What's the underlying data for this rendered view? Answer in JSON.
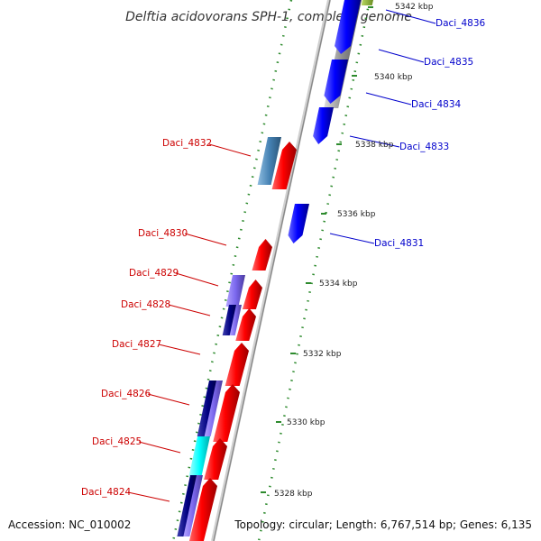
{
  "title": "Delftia acidovorans SPH-1, complete genome",
  "footer": {
    "accession": "Accession: NC_010002",
    "summary": "Topology: circular; Length: 6,767,514 bp; Genes: 6,135"
  },
  "colors": {
    "forward_label": "#cc0000",
    "reverse_label": "#0000cc",
    "forward_gene": "#ff0000",
    "reverse_gene": "#0000ff",
    "backbone": "#999999",
    "tick_dots": "#2e8b2e"
  },
  "scale_ticks": [
    {
      "label": "5342 kbp",
      "kbp": 5342
    },
    {
      "label": "5340 kbp",
      "kbp": 5340
    },
    {
      "label": "5338 kbp",
      "kbp": 5338
    },
    {
      "label": "5336 kbp",
      "kbp": 5336
    },
    {
      "label": "5334 kbp",
      "kbp": 5334
    },
    {
      "label": "5332 kbp",
      "kbp": 5332
    },
    {
      "label": "5330 kbp",
      "kbp": 5330
    },
    {
      "label": "5328 kbp",
      "kbp": 5328
    }
  ],
  "genes_forward": [
    {
      "label": "Daci_4832"
    },
    {
      "label": "Daci_4830"
    },
    {
      "label": "Daci_4829"
    },
    {
      "label": "Daci_4828"
    },
    {
      "label": "Daci_4827"
    },
    {
      "label": "Daci_4826"
    },
    {
      "label": "Daci_4825"
    },
    {
      "label": "Daci_4824"
    }
  ],
  "genes_reverse": [
    {
      "label": "Daci_4836"
    },
    {
      "label": "Daci_4835"
    },
    {
      "label": "Daci_4834"
    },
    {
      "label": "Daci_4833"
    },
    {
      "label": "Daci_4831"
    }
  ]
}
